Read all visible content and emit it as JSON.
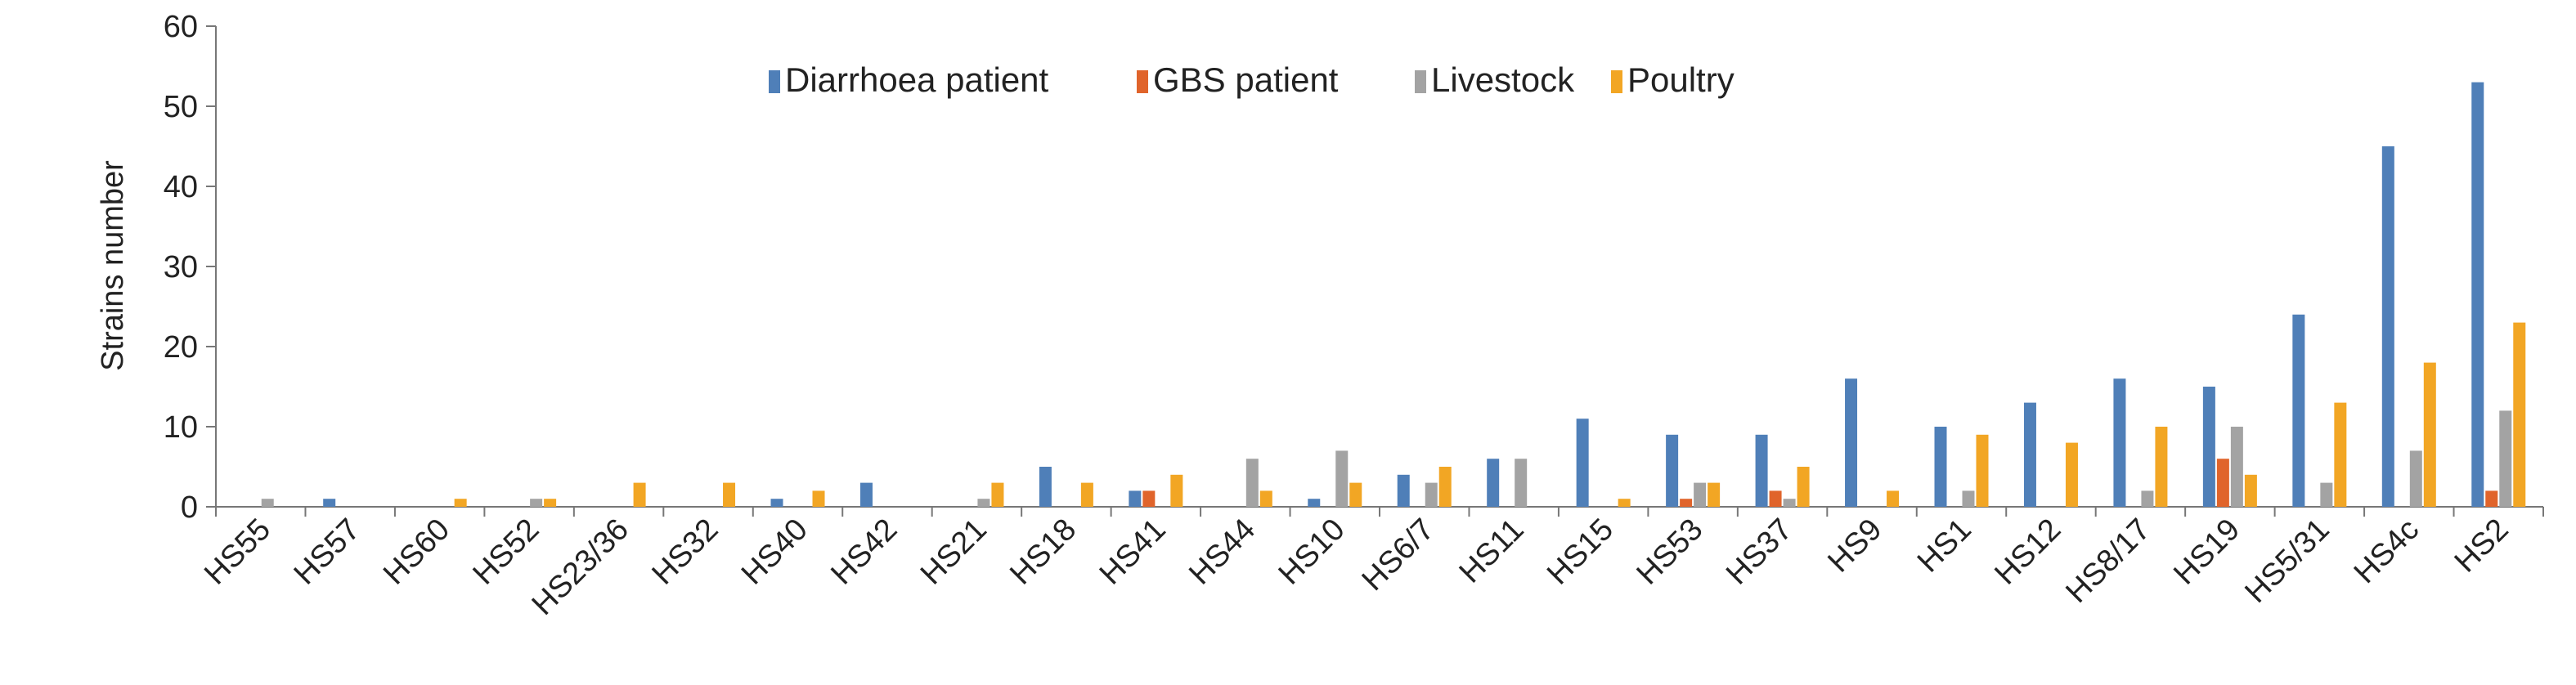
{
  "chart_data": {
    "type": "bar",
    "title": "",
    "xlabel": "",
    "ylabel": "Strains number",
    "ylim": [
      0,
      60
    ],
    "yticks": [
      0,
      10,
      20,
      30,
      40,
      50,
      60
    ],
    "grid": false,
    "legend_position": "top-center",
    "categories": [
      "HS55",
      "HS57",
      "HS60",
      "HS52",
      "HS23/36",
      "HS32",
      "HS40",
      "HS42",
      "HS21",
      "HS18",
      "HS41",
      "HS44",
      "HS10",
      "HS6/7",
      "HS11",
      "HS15",
      "HS53",
      "HS37",
      "HS9",
      "HS1",
      "HS12",
      "HS8/17",
      "HS19",
      "HS5/31",
      "HS4c",
      "HS2"
    ],
    "series": [
      {
        "name": "Diarrhoea patient",
        "color": "#4f7fb8",
        "values": [
          0,
          1,
          0,
          0,
          0,
          0,
          1,
          3,
          0,
          5,
          2,
          0,
          1,
          4,
          6,
          11,
          9,
          9,
          16,
          10,
          13,
          16,
          15,
          24,
          45,
          53
        ]
      },
      {
        "name": "GBS patient",
        "color": "#e0642b",
        "values": [
          0,
          0,
          0,
          0,
          0,
          0,
          0,
          0,
          0,
          0,
          2,
          0,
          0,
          0,
          0,
          0,
          1,
          2,
          0,
          0,
          0,
          0,
          6,
          0,
          0,
          2
        ]
      },
      {
        "name": "Livestock",
        "color": "#a3a3a3",
        "values": [
          1,
          0,
          0,
          1,
          0,
          0,
          0,
          0,
          1,
          0,
          0,
          6,
          7,
          3,
          6,
          0,
          3,
          1,
          0,
          2,
          0,
          2,
          10,
          3,
          7,
          12
        ]
      },
      {
        "name": "Poultry",
        "color": "#f2a624",
        "values": [
          0,
          0,
          1,
          1,
          3,
          3,
          2,
          0,
          3,
          3,
          4,
          2,
          3,
          5,
          0,
          1,
          3,
          5,
          2,
          9,
          8,
          10,
          4,
          13,
          18,
          23
        ]
      }
    ]
  }
}
